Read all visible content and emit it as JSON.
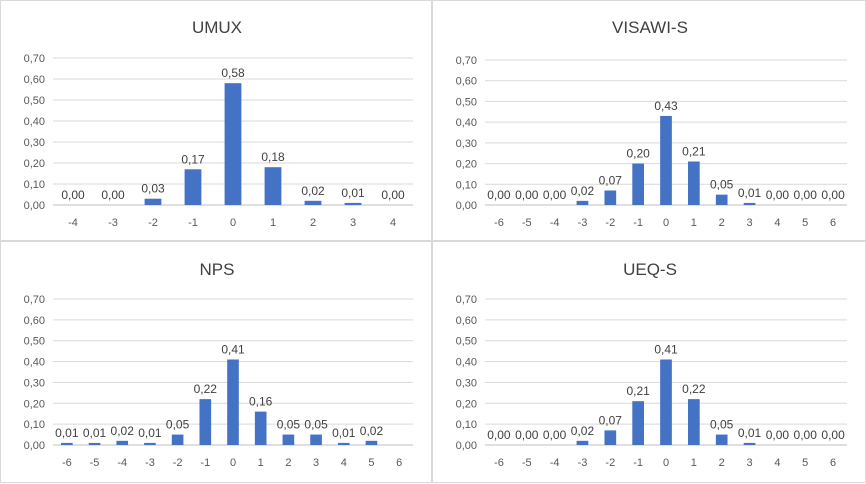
{
  "chart_data": [
    {
      "type": "bar",
      "title": "UMUX",
      "categories": [
        "-4",
        "-3",
        "-2",
        "-1",
        "0",
        "1",
        "2",
        "3",
        "4"
      ],
      "values": [
        0.0,
        0.0,
        0.03,
        0.17,
        0.58,
        0.18,
        0.02,
        0.01,
        0.0
      ],
      "labels": [
        "0,00",
        "0,00",
        "0,03",
        "0,17",
        "0,58",
        "0,18",
        "0,02",
        "0,01",
        "0,00"
      ],
      "yticks": [
        "0,00",
        "0,10",
        "0,20",
        "0,30",
        "0,40",
        "0,50",
        "0,60",
        "0,70"
      ],
      "ylim": [
        0,
        0.7
      ],
      "grid": true,
      "bar_color": "#4472c4"
    },
    {
      "type": "bar",
      "title": "VISAWI-S",
      "categories": [
        "-6",
        "-5",
        "-4",
        "-3",
        "-2",
        "-1",
        "0",
        "1",
        "2",
        "3",
        "4",
        "5",
        "6"
      ],
      "values": [
        0.0,
        0.0,
        0.0,
        0.02,
        0.07,
        0.2,
        0.43,
        0.21,
        0.05,
        0.01,
        0.0,
        0.0,
        0.0
      ],
      "labels": [
        "0,00",
        "0,00",
        "0,00",
        "0,02",
        "0,07",
        "0,20",
        "0,43",
        "0,21",
        "0,05",
        "0,01",
        "0,00",
        "0,00",
        "0,00"
      ],
      "yticks": [
        "0,00",
        "0,10",
        "0,20",
        "0,30",
        "0,40",
        "0,50",
        "0,60",
        "0,70"
      ],
      "ylim": [
        0,
        0.7
      ],
      "grid": true,
      "bar_color": "#4472c4"
    },
    {
      "type": "bar",
      "title": "NPS",
      "categories": [
        "-6",
        "-5",
        "-4",
        "-3",
        "-2",
        "-1",
        "0",
        "1",
        "2",
        "3",
        "4",
        "5",
        "6"
      ],
      "values": [
        0.01,
        0.01,
        0.02,
        0.01,
        0.05,
        0.22,
        0.41,
        0.16,
        0.05,
        0.05,
        0.01,
        0.02,
        null
      ],
      "labels": [
        "0,01",
        "0,01",
        "0,02",
        "0,01",
        "0,05",
        "0,22",
        "0,41",
        "0,16",
        "0,05",
        "0,05",
        "0,01",
        "0,02",
        ""
      ],
      "yticks": [
        "0,00",
        "0,10",
        "0,20",
        "0,30",
        "0,40",
        "0,50",
        "0,60",
        "0,70"
      ],
      "ylim": [
        0,
        0.7
      ],
      "grid": true,
      "bar_color": "#4472c4"
    },
    {
      "type": "bar",
      "title": "UEQ-S",
      "categories": [
        "-6",
        "-5",
        "-4",
        "-3",
        "-2",
        "-1",
        "0",
        "1",
        "2",
        "3",
        "4",
        "5",
        "6"
      ],
      "values": [
        0.0,
        0.0,
        0.0,
        0.02,
        0.07,
        0.21,
        0.41,
        0.22,
        0.05,
        0.01,
        0.0,
        0.0,
        0.0
      ],
      "labels": [
        "0,00",
        "0,00",
        "0,00",
        "0,02",
        "0,07",
        "0,21",
        "0,41",
        "0,22",
        "0,05",
        "0,01",
        "0,00",
        "0,00",
        "0,00"
      ],
      "yticks": [
        "0,00",
        "0,10",
        "0,20",
        "0,30",
        "0,40",
        "0,50",
        "0,60",
        "0,70"
      ],
      "ylim": [
        0,
        0.7
      ],
      "grid": true,
      "bar_color": "#4472c4"
    }
  ]
}
